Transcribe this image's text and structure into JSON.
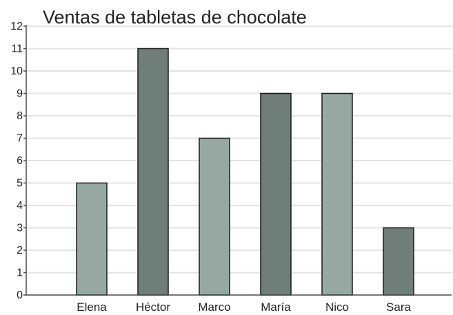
{
  "chart_data": {
    "type": "bar",
    "title": "Ventas de tabletas de chocolate",
    "categories": [
      "Elena",
      "Héctor",
      "Marco",
      "María",
      "Nico",
      "Sara"
    ],
    "values": [
      5,
      11,
      7,
      9,
      9,
      3
    ],
    "xlabel": "",
    "ylabel": "",
    "ylim": [
      0,
      12
    ],
    "yticks": [
      "0",
      "1",
      "2",
      "3",
      "4",
      "5",
      "6",
      "7",
      "8",
      "9",
      "10",
      "11",
      "12"
    ],
    "grid": true,
    "legend": "none",
    "colors": {
      "bar_light": "#97a8a3",
      "bar_dark": "#6f7e78",
      "grid": "#e3e3e3",
      "axis": "#4a4a4a"
    }
  }
}
